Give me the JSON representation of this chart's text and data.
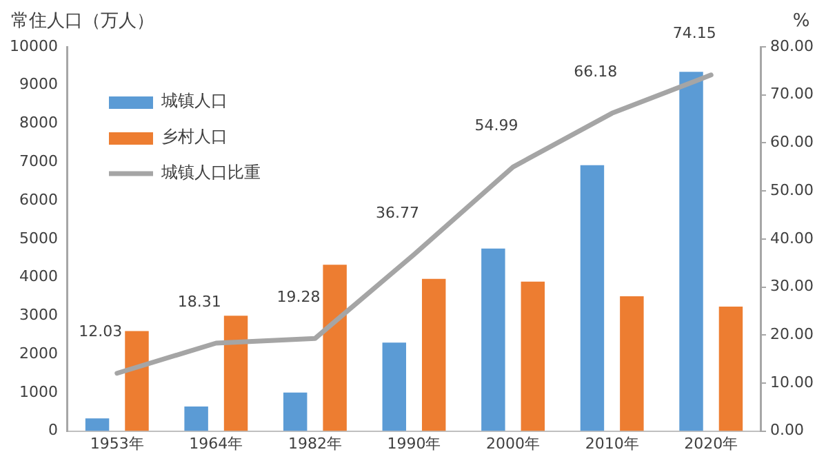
{
  "chart_data": {
    "type": "bar",
    "ylabel": "常住人口（万人）",
    "y2label": "%",
    "categories": [
      "1953年",
      "1964年",
      "1982年",
      "1990年",
      "2000年",
      "2010年",
      "2020年"
    ],
    "series": [
      {
        "name": "城镇人口",
        "color": "#5b9bd5",
        "values": [
          330,
          640,
          1000,
          2300,
          4750,
          6920,
          9350
        ]
      },
      {
        "name": "乡村人口",
        "color": "#ed7d31",
        "values": [
          2600,
          3000,
          4330,
          3960,
          3890,
          3510,
          3240
        ]
      },
      {
        "name": "城镇人口比重",
        "type": "line",
        "axis": "y2",
        "color": "#a5a5a5",
        "values": [
          12.03,
          18.31,
          19.28,
          36.77,
          54.99,
          66.18,
          74.15
        ],
        "value_labels": [
          "12.03",
          "18.31",
          "19.28",
          "36.77",
          "54.99",
          "66.18",
          "74.15"
        ]
      }
    ],
    "ylim": [
      0,
      10000
    ],
    "yticks": [
      0,
      1000,
      2000,
      3000,
      4000,
      5000,
      6000,
      7000,
      8000,
      9000,
      10000
    ],
    "y2lim": [
      0,
      80
    ],
    "y2ticks": [
      {
        "value": 0,
        "label": "0.00"
      },
      {
        "value": 10,
        "label": "10.00"
      },
      {
        "value": 20,
        "label": "20.00"
      },
      {
        "value": 30,
        "label": "30.00"
      },
      {
        "value": 40,
        "label": "40.00"
      },
      {
        "value": 50,
        "label": "50.00"
      },
      {
        "value": 60,
        "label": "60.00"
      },
      {
        "value": 70,
        "label": "70.00"
      },
      {
        "value": 80,
        "label": "80.00"
      }
    ],
    "grid": false,
    "legend": "top left",
    "marker": "none"
  }
}
